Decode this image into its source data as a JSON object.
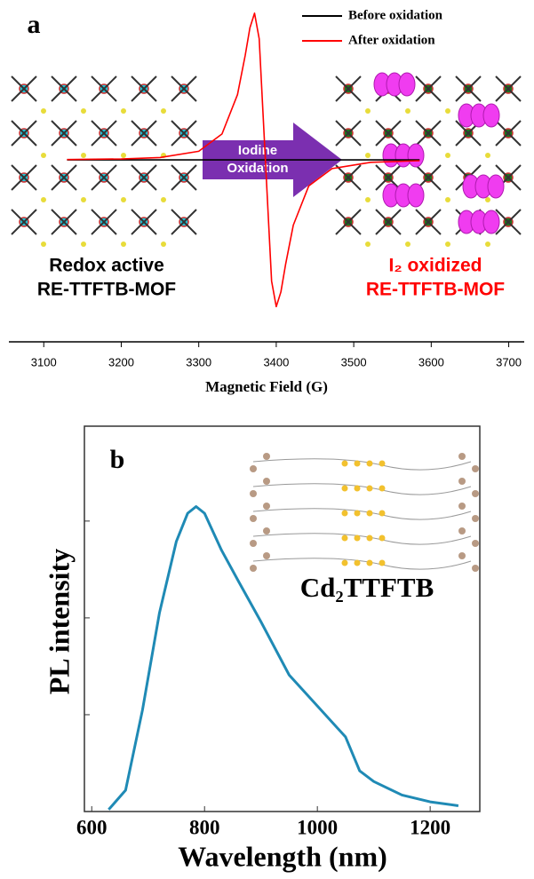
{
  "chart_data": [
    {
      "type": "line",
      "panel_label": "a",
      "xlabel": "Magnetic Field (G)",
      "x": [
        3130,
        3200,
        3250,
        3300,
        3330,
        3350,
        3360,
        3366,
        3372,
        3378,
        3386,
        3394,
        3400,
        3406,
        3412,
        3422,
        3442,
        3472,
        3522,
        3585
      ],
      "series": [
        {
          "name": "Before oxidation",
          "color": "#000000",
          "values": [
            0,
            0,
            0,
            0,
            0,
            0,
            0,
            0,
            0,
            0,
            0,
            0,
            0,
            0,
            0,
            0,
            0,
            0,
            0,
            0
          ]
        },
        {
          "name": "After oxidation",
          "color": "#ff0000",
          "values": [
            0.0026,
            0.0066,
            0.0164,
            0.059,
            0.177,
            0.445,
            0.714,
            0.9,
            1,
            0.826,
            0,
            -0.826,
            -1,
            -0.9,
            -0.714,
            -0.445,
            -0.177,
            -0.059,
            -0.0164,
            -0.0054
          ]
        }
      ],
      "xlim": [
        3055,
        3720
      ],
      "xticks": [
        3100,
        3200,
        3300,
        3400,
        3500,
        3600,
        3700
      ],
      "ylim": [
        -1.24,
        1.09
      ],
      "legend": "top-right",
      "annotations": {
        "arrow": [
          "Iodine",
          "Oxidation"
        ],
        "left": [
          "Redox active",
          "RE-TTFTB-MOF"
        ],
        "right": [
          "I₂ oxidized",
          "RE-TTFTB-MOF"
        ]
      }
    },
    {
      "type": "line",
      "panel_label": "b",
      "xlabel": "Wavelength (nm)",
      "ylabel": "PL intensity",
      "inset_label": "Cd₂TTFTB",
      "x": [
        630,
        660,
        690,
        720,
        750,
        770,
        785,
        800,
        830,
        860,
        900,
        950,
        1000,
        1050,
        1075,
        1100,
        1150,
        1200,
        1250
      ],
      "series": [
        {
          "color": "#1f8ab5",
          "values": [
            0.02,
            0.22,
            1.05,
            2.05,
            2.79,
            3.08,
            3.15,
            3.08,
            2.7,
            2.38,
            1.96,
            1.41,
            1.09,
            0.77,
            0.42,
            0.31,
            0.17,
            0.1,
            0.06
          ]
        }
      ],
      "xlim": [
        587,
        1288
      ],
      "xticks": [
        600,
        800,
        1000,
        1200
      ],
      "ylim": [
        0,
        3.98
      ],
      "yticks": [
        1,
        2,
        3
      ],
      "ytick_labels": false
    }
  ]
}
